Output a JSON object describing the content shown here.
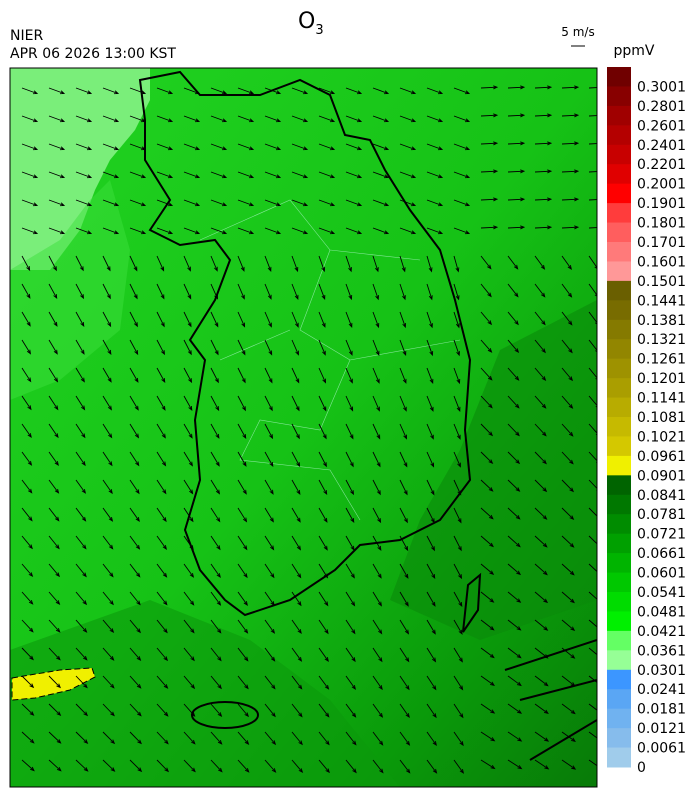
{
  "header": {
    "title": {
      "main": "O",
      "subscript": "3"
    },
    "agency": "NIER",
    "datetime": "APR 06 2026 13:00 KST",
    "vector_scale": "5 m/s"
  },
  "colorbar": {
    "unit": "ppmV",
    "labels": [
      0.3001,
      0.2801,
      0.2601,
      0.2401,
      0.2201,
      0.2001,
      0.1901,
      0.1801,
      0.1701,
      0.1601,
      0.1501,
      0.1441,
      0.1381,
      0.1321,
      0.1261,
      0.1201,
      0.1141,
      0.1081,
      0.1021,
      0.0961,
      0.0901,
      0.0841,
      0.0781,
      0.0721,
      0.0661,
      0.0601,
      0.0541,
      0.0481,
      0.0421,
      0.0361,
      0.0301,
      0.0241,
      0.0181,
      0.0121,
      0.0061,
      0
    ],
    "colors": [
      "#700000",
      "#880000",
      "#a00000",
      "#b40000",
      "#c80000",
      "#e00000",
      "#ff0000",
      "#ff3c3c",
      "#ff5e5e",
      "#ff7a7a",
      "#ff9898",
      "#6a5f00",
      "#786c00",
      "#857a00",
      "#928600",
      "#9e9200",
      "#aa9e00",
      "#b8ac00",
      "#c6ba00",
      "#d4c800",
      "#f0f000",
      "#006400",
      "#007800",
      "#008c00",
      "#00a000",
      "#00b400",
      "#00c800",
      "#00dc00",
      "#00f000",
      "#64ff64",
      "#96ff96",
      "#3c96ff",
      "#5aa6f4",
      "#70b2f0",
      "#86bcec",
      "#a0cceb"
    ]
  }
}
